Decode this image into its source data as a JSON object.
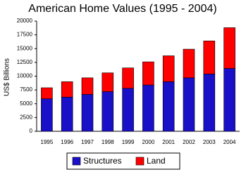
{
  "chart_data": {
    "type": "stacked-bar",
    "title": "American Home Values (1995 - 2004)",
    "y_label": "US$ Billions",
    "categories": [
      "1995",
      "1996",
      "1997",
      "1998",
      "1999",
      "2000",
      "2001",
      "2002",
      "2003",
      "2004"
    ],
    "series": [
      {
        "name": "Structures",
        "color": "#1a10c8",
        "values": [
          5900,
          6200,
          6700,
          7200,
          7800,
          8400,
          9000,
          9700,
          10400,
          11400
        ]
      },
      {
        "name": "Land",
        "color": "#ff0000",
        "values": [
          2000,
          2800,
          3000,
          3400,
          3700,
          4200,
          4700,
          5200,
          6000,
          7400
        ]
      }
    ],
    "ylim": [
      0,
      20000
    ],
    "yticks": [
      0,
      2500,
      5000,
      7500,
      10000,
      12500,
      15000,
      17500,
      20000
    ],
    "grid": false,
    "legend": "bottom"
  }
}
